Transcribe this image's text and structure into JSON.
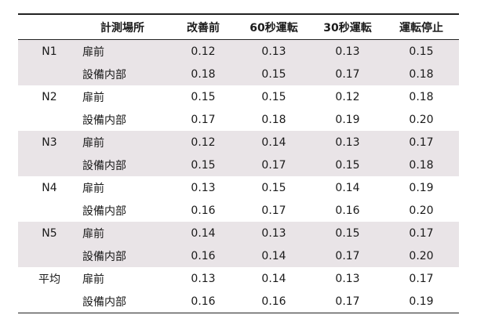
{
  "table": {
    "headers": [
      "",
      "計測場所",
      "改善前",
      "60秒運転",
      "30秒運転",
      "運転停止"
    ],
    "groups": [
      {
        "label": "N1",
        "rows": [
          {
            "location": "扉前",
            "values": [
              "0.12",
              "0.13",
              "0.13",
              "0.15"
            ]
          },
          {
            "location": "設備内部",
            "values": [
              "0.18",
              "0.15",
              "0.17",
              "0.18"
            ]
          }
        ]
      },
      {
        "label": "N2",
        "rows": [
          {
            "location": "扉前",
            "values": [
              "0.15",
              "0.15",
              "0.12",
              "0.18"
            ]
          },
          {
            "location": "設備内部",
            "values": [
              "0.17",
              "0.18",
              "0.19",
              "0.20"
            ]
          }
        ]
      },
      {
        "label": "N3",
        "rows": [
          {
            "location": "扉前",
            "values": [
              "0.12",
              "0.14",
              "0.13",
              "0.17"
            ]
          },
          {
            "location": "設備内部",
            "values": [
              "0.15",
              "0.17",
              "0.15",
              "0.18"
            ]
          }
        ]
      },
      {
        "label": "N4",
        "rows": [
          {
            "location": "扉前",
            "values": [
              "0.13",
              "0.15",
              "0.14",
              "0.19"
            ]
          },
          {
            "location": "設備内部",
            "values": [
              "0.16",
              "0.17",
              "0.16",
              "0.20"
            ]
          }
        ]
      },
      {
        "label": "N5",
        "rows": [
          {
            "location": "扉前",
            "values": [
              "0.14",
              "0.13",
              "0.15",
              "0.17"
            ]
          },
          {
            "location": "設備内部",
            "values": [
              "0.16",
              "0.14",
              "0.17",
              "0.20"
            ]
          }
        ]
      },
      {
        "label": "平均",
        "rows": [
          {
            "location": "扉前",
            "values": [
              "0.13",
              "0.14",
              "0.13",
              "0.17"
            ]
          },
          {
            "location": "設備内部",
            "values": [
              "0.16",
              "0.16",
              "0.17",
              "0.19"
            ]
          }
        ]
      }
    ],
    "shaded_color": "#e9e4e7"
  }
}
